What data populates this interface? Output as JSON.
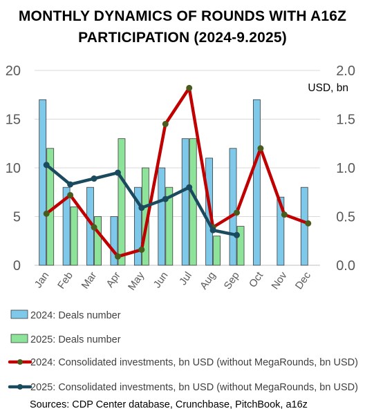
{
  "title_line1": "MONTHLY DYNAMICS OF ROUNDS WITH A16Z",
  "title_line2": "PARTICIPATION (2024-9.2025)",
  "sources": "Sources: CDP Center database, Crunchbase, PitchBook, a16z",
  "chart_data": {
    "type": "bar+line",
    "categories": [
      "Jan",
      "Feb",
      "Mar",
      "Apr",
      "May",
      "Jun",
      "Jul",
      "Aug",
      "Sep",
      "Oct",
      "Nov",
      "Dec"
    ],
    "left_axis": {
      "ylim": [
        0,
        20
      ],
      "ticks": [
        "0",
        "5",
        "10",
        "15",
        "20"
      ]
    },
    "right_axis": {
      "label": "USD, bn",
      "ylim": [
        0,
        2.0
      ],
      "ticks": [
        "0.0",
        "0.5",
        "1.0",
        "1.5",
        "2.0"
      ]
    },
    "grid": true,
    "legend_position": "bottom",
    "series": [
      {
        "name": "2024: Deals number",
        "kind": "bar",
        "axis": "left",
        "color": "#7ec8ea",
        "values": [
          17,
          8,
          8,
          5,
          8,
          10,
          13,
          11,
          12,
          17,
          7,
          8
        ]
      },
      {
        "name": "2025: Deals number",
        "kind": "bar",
        "axis": "left",
        "color": "#8ee39a",
        "values": [
          12,
          6,
          5,
          13,
          10,
          8,
          13,
          3,
          4,
          null,
          null,
          null
        ]
      },
      {
        "name": "2024: Consolidated investments, bn USD (without MegaRounds, bn USD)",
        "kind": "line",
        "axis": "right",
        "color": "#c00000",
        "marker_color": "#4a5b1e",
        "values": [
          0.53,
          0.72,
          0.39,
          0.09,
          0.16,
          1.45,
          1.82,
          0.39,
          0.54,
          1.2,
          0.52,
          0.43
        ]
      },
      {
        "name": "2025: Consolidated investments, bn USD (without MegaRounds, bn USD)",
        "kind": "line",
        "axis": "right",
        "color": "#1b4a5e",
        "marker_color": "#1b4a5e",
        "values": [
          1.03,
          0.83,
          0.89,
          0.95,
          0.59,
          0.68,
          0.8,
          0.36,
          0.31,
          null,
          null,
          null
        ]
      }
    ]
  }
}
